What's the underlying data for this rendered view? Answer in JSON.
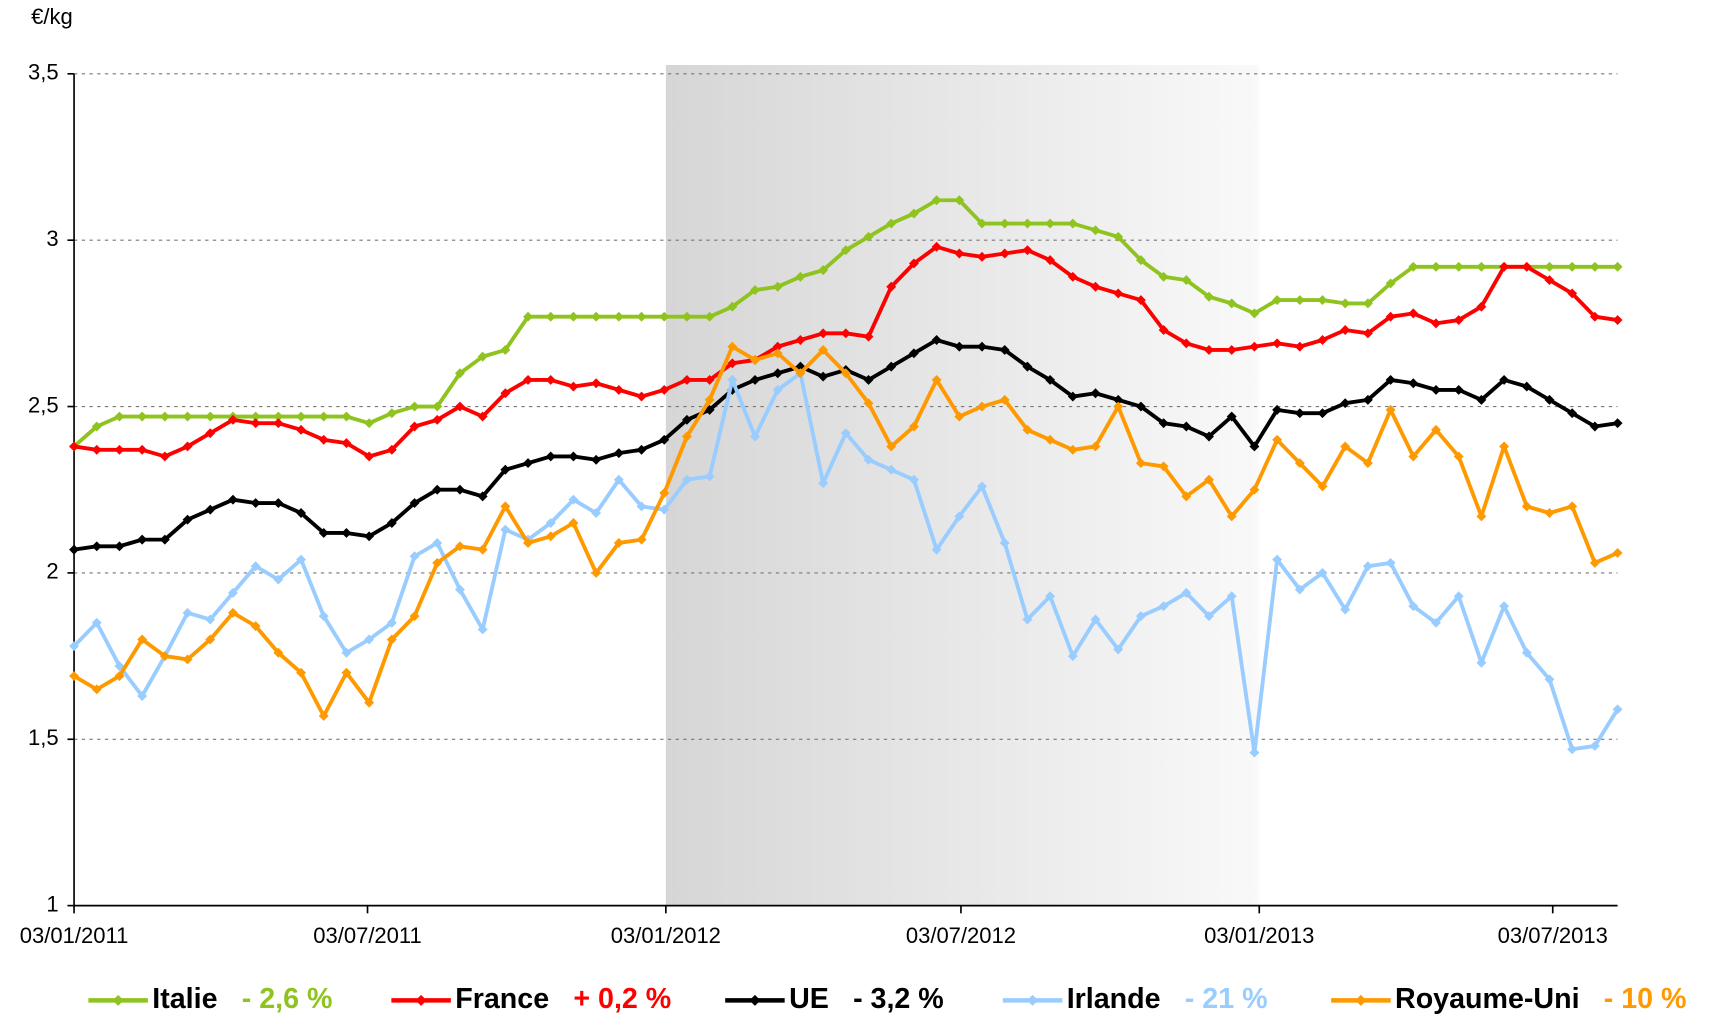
{
  "chart_data": {
    "type": "line",
    "y_axis_label": "€/kg",
    "x": [
      "03/01/2011",
      "17/01/2011",
      "31/01/2011",
      "14/02/2011",
      "28/02/2011",
      "14/03/2011",
      "28/03/2011",
      "11/04/2011",
      "25/04/2011",
      "09/05/2011",
      "23/05/2011",
      "06/06/2011",
      "20/06/2011",
      "04/07/2011",
      "18/07/2011",
      "01/08/2011",
      "15/08/2011",
      "29/08/2011",
      "12/09/2011",
      "26/09/2011",
      "10/10/2011",
      "24/10/2011",
      "07/11/2011",
      "21/11/2011",
      "05/12/2011",
      "19/12/2011",
      "02/01/2012",
      "16/01/2012",
      "30/01/2012",
      "13/02/2012",
      "27/02/2012",
      "12/03/2012",
      "26/03/2012",
      "09/04/2012",
      "23/04/2012",
      "07/05/2012",
      "21/05/2012",
      "04/06/2012",
      "18/06/2012",
      "02/07/2012",
      "16/07/2012",
      "30/07/2012",
      "13/08/2012",
      "27/08/2012",
      "10/09/2012",
      "24/09/2012",
      "08/10/2012",
      "22/10/2012",
      "05/11/2012",
      "19/11/2012",
      "03/12/2012",
      "17/12/2012",
      "31/12/2012",
      "14/01/2013",
      "28/01/2013",
      "11/02/2013",
      "25/02/2013",
      "11/03/2013",
      "25/03/2013",
      "08/04/2013",
      "22/04/2013",
      "06/05/2013",
      "20/05/2013",
      "03/06/2013",
      "17/06/2013",
      "01/07/2013",
      "15/07/2013",
      "29/07/2013",
      "12/08/2013"
    ],
    "xlim": [
      "03/01/2011",
      "12/08/2013"
    ],
    "xticks": [
      "03/01/2011",
      "03/07/2011",
      "03/01/2012",
      "03/07/2012",
      "03/01/2013",
      "03/07/2013"
    ],
    "ylim": [
      1,
      3.5
    ],
    "yticks": [
      1,
      {
        "value": 1.5,
        "label": "1,5"
      },
      2,
      {
        "value": 2.5,
        "label": "2,5"
      },
      3,
      {
        "value": 3.5,
        "label": "3,5"
      }
    ],
    "grid": true,
    "shaded_range": [
      "03/01/2012",
      "03/01/2013"
    ],
    "legend": "bottom",
    "series": [
      {
        "name": "Italie",
        "change": "- 2,6 %",
        "color": "#8fc31f",
        "values": [
          2.38,
          2.44,
          2.47,
          2.47,
          2.47,
          2.47,
          2.47,
          2.47,
          2.47,
          2.47,
          2.47,
          2.47,
          2.47,
          2.45,
          2.48,
          2.5,
          2.5,
          2.6,
          2.65,
          2.67,
          2.77,
          2.77,
          2.77,
          2.77,
          2.77,
          2.77,
          2.77,
          2.77,
          2.77,
          2.8,
          2.85,
          2.86,
          2.89,
          2.91,
          2.97,
          3.01,
          3.05,
          3.08,
          3.12,
          3.12,
          3.05,
          3.05,
          3.05,
          3.05,
          3.05,
          3.03,
          3.01,
          2.94,
          2.89,
          2.88,
          2.83,
          2.81,
          2.78,
          2.82,
          2.82,
          2.82,
          2.81,
          2.81,
          2.87,
          2.92,
          2.92,
          2.92,
          2.92,
          2.92,
          2.92,
          2.92,
          2.92,
          2.92,
          2.92
        ]
      },
      {
        "name": "France",
        "change": "+ 0,2 %",
        "color": "#ff0000",
        "values": [
          2.38,
          2.37,
          2.37,
          2.37,
          2.35,
          2.38,
          2.42,
          2.46,
          2.45,
          2.45,
          2.43,
          2.4,
          2.39,
          2.35,
          2.37,
          2.44,
          2.46,
          2.5,
          2.47,
          2.54,
          2.58,
          2.58,
          2.56,
          2.57,
          2.55,
          2.53,
          2.55,
          2.58,
          2.58,
          2.63,
          2.64,
          2.68,
          2.7,
          2.72,
          2.72,
          2.71,
          2.86,
          2.93,
          2.98,
          2.96,
          2.95,
          2.96,
          2.97,
          2.94,
          2.89,
          2.86,
          2.84,
          2.82,
          2.73,
          2.69,
          2.67,
          2.67,
          2.68,
          2.69,
          2.68,
          2.7,
          2.73,
          2.72,
          2.77,
          2.78,
          2.75,
          2.76,
          2.8,
          2.92,
          2.92,
          2.88,
          2.84,
          2.77,
          2.76
        ]
      },
      {
        "name": "UE",
        "change": "- 3,2 %",
        "color": "#000000",
        "values": [
          2.07,
          2.08,
          2.08,
          2.1,
          2.1,
          2.16,
          2.19,
          2.22,
          2.21,
          2.21,
          2.18,
          2.12,
          2.12,
          2.11,
          2.15,
          2.21,
          2.25,
          2.25,
          2.23,
          2.31,
          2.33,
          2.35,
          2.35,
          2.34,
          2.36,
          2.37,
          2.4,
          2.46,
          2.49,
          2.55,
          2.58,
          2.6,
          2.62,
          2.59,
          2.61,
          2.58,
          2.62,
          2.66,
          2.7,
          2.68,
          2.68,
          2.67,
          2.62,
          2.58,
          2.53,
          2.54,
          2.52,
          2.5,
          2.45,
          2.44,
          2.41,
          2.47,
          2.38,
          2.49,
          2.48,
          2.48,
          2.51,
          2.52,
          2.58,
          2.57,
          2.55,
          2.55,
          2.52,
          2.58,
          2.56,
          2.52,
          2.48,
          2.44,
          2.45
        ]
      },
      {
        "name": "Irlande",
        "change": "- 21 %",
        "color": "#99ccff",
        "values": [
          1.78,
          1.85,
          1.72,
          1.63,
          1.75,
          1.88,
          1.86,
          1.94,
          2.02,
          1.98,
          2.04,
          1.87,
          1.76,
          1.8,
          1.85,
          2.05,
          2.09,
          1.95,
          1.83,
          2.13,
          2.1,
          2.15,
          2.22,
          2.18,
          2.28,
          2.2,
          2.19,
          2.28,
          2.29,
          2.58,
          2.41,
          2.55,
          2.6,
          2.27,
          2.42,
          2.34,
          2.31,
          2.28,
          2.07,
          2.17,
          2.26,
          2.09,
          1.86,
          1.93,
          1.75,
          1.86,
          1.77,
          1.87,
          1.9,
          1.94,
          1.87,
          1.93,
          1.46,
          2.04,
          1.95,
          2.0,
          1.89,
          2.02,
          2.03,
          1.9,
          1.85,
          1.93,
          1.73,
          1.9,
          1.76,
          1.68,
          1.47,
          1.48,
          1.59
        ]
      },
      {
        "name": "Royaume-Uni",
        "change": "- 10 %",
        "color": "#ff9900",
        "values": [
          1.69,
          1.65,
          1.69,
          1.8,
          1.75,
          1.74,
          1.8,
          1.88,
          1.84,
          1.76,
          1.7,
          1.57,
          1.7,
          1.61,
          1.8,
          1.87,
          2.03,
          2.08,
          2.07,
          2.2,
          2.09,
          2.11,
          2.15,
          2.0,
          2.09,
          2.1,
          2.24,
          2.41,
          2.52,
          2.68,
          2.64,
          2.66,
          2.6,
          2.67,
          2.6,
          2.51,
          2.38,
          2.44,
          2.58,
          2.47,
          2.5,
          2.52,
          2.43,
          2.4,
          2.37,
          2.38,
          2.5,
          2.33,
          2.32,
          2.23,
          2.28,
          2.17,
          2.25,
          2.4,
          2.33,
          2.26,
          2.38,
          2.33,
          2.49,
          2.35,
          2.43,
          2.35,
          2.17,
          2.38,
          2.2,
          2.18,
          2.2,
          2.03,
          2.06
        ]
      }
    ]
  }
}
